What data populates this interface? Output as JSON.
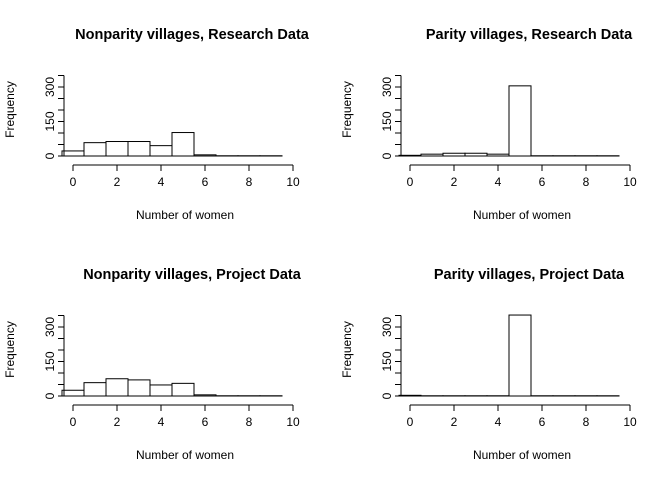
{
  "chart_data": [
    {
      "type": "bar",
      "title": "Nonparity villages, Research Data",
      "xlabel": "Number of women",
      "ylabel": "Frequency",
      "xlim": [
        0,
        10
      ],
      "ylim": [
        0,
        350
      ],
      "xticks": [
        0,
        2,
        4,
        6,
        8,
        10
      ],
      "yticks": [
        0,
        150,
        300
      ],
      "bin_width": 1,
      "bin_starts": [
        -0.5,
        0.5,
        1.5,
        2.5,
        3.5,
        4.5,
        5.5,
        6.5,
        7.5,
        8.5
      ],
      "values": [
        22,
        58,
        63,
        63,
        45,
        102,
        5,
        1,
        1,
        1
      ]
    },
    {
      "type": "bar",
      "title": "Parity villages, Research Data",
      "xlabel": "Number of women",
      "ylabel": "Frequency",
      "xlim": [
        0,
        10
      ],
      "ylim": [
        0,
        350
      ],
      "xticks": [
        0,
        2,
        4,
        6,
        8,
        10
      ],
      "yticks": [
        0,
        150,
        300
      ],
      "bin_width": 1,
      "bin_starts": [
        -0.5,
        0.5,
        1.5,
        2.5,
        3.5,
        4.5,
        5.5,
        6.5,
        7.5,
        8.5
      ],
      "values": [
        3,
        8,
        12,
        12,
        8,
        305,
        1,
        1,
        1,
        1
      ]
    },
    {
      "type": "bar",
      "title": "Nonparity villages, Project Data",
      "xlabel": "Number of women",
      "ylabel": "Frequency",
      "xlim": [
        0,
        10
      ],
      "ylim": [
        0,
        350
      ],
      "xticks": [
        0,
        2,
        4,
        6,
        8,
        10
      ],
      "yticks": [
        0,
        150,
        300
      ],
      "bin_width": 1,
      "bin_starts": [
        -0.5,
        0.5,
        1.5,
        2.5,
        3.5,
        4.5,
        5.5,
        6.5,
        7.5,
        8.5
      ],
      "values": [
        25,
        58,
        75,
        70,
        48,
        55,
        5,
        1,
        1,
        1
      ]
    },
    {
      "type": "bar",
      "title": "Parity villages, Project Data",
      "xlabel": "Number of women",
      "ylabel": "Frequency",
      "xlim": [
        0,
        10
      ],
      "ylim": [
        0,
        350
      ],
      "xticks": [
        0,
        2,
        4,
        6,
        8,
        10
      ],
      "yticks": [
        0,
        150,
        300
      ],
      "bin_width": 1,
      "bin_starts": [
        -0.5,
        0.5,
        1.5,
        2.5,
        3.5,
        4.5,
        5.5,
        6.5,
        7.5,
        8.5
      ],
      "values": [
        3,
        1,
        1,
        1,
        1,
        352,
        1,
        1,
        1,
        1
      ]
    }
  ]
}
